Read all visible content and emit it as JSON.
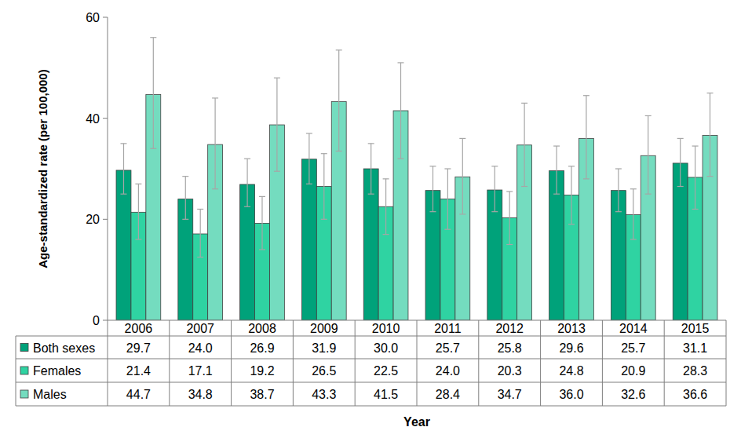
{
  "chart_data": {
    "type": "bar",
    "x_label": "Year",
    "y_label": "Age-standardized rate (per 100,000)",
    "categories": [
      "2006",
      "2007",
      "2008",
      "2009",
      "2010",
      "2011",
      "2012",
      "2013",
      "2014",
      "2015"
    ],
    "ylim": [
      0,
      60
    ],
    "yticks": [
      0,
      20,
      40,
      60
    ],
    "grid": false,
    "series": [
      {
        "name": "Both sexes",
        "color": "#00a27a",
        "values": [
          29.7,
          24.0,
          26.9,
          31.9,
          30.0,
          25.7,
          25.8,
          29.6,
          25.7,
          31.1
        ],
        "value_labels": [
          "29.7",
          "24.0",
          "26.9",
          "31.9",
          "30.0",
          "25.7",
          "25.8",
          "29.6",
          "25.7",
          "31.1"
        ],
        "ci_lower": [
          25.0,
          20.0,
          22.5,
          27.0,
          25.0,
          21.5,
          21.5,
          25.0,
          21.5,
          26.5
        ],
        "ci_upper": [
          35.0,
          28.5,
          32.0,
          37.0,
          35.0,
          30.5,
          30.5,
          34.5,
          30.0,
          36.0
        ]
      },
      {
        "name": "Females",
        "color": "#2fd3a2",
        "values": [
          21.4,
          17.1,
          19.2,
          26.5,
          22.5,
          24.0,
          20.3,
          24.8,
          20.9,
          28.3
        ],
        "value_labels": [
          "21.4",
          "17.1",
          "19.2",
          "26.5",
          "22.5",
          "24.0",
          "20.3",
          "24.8",
          "20.9",
          "28.3"
        ],
        "ci_lower": [
          16.0,
          12.5,
          14.0,
          20.0,
          17.0,
          18.0,
          15.0,
          19.0,
          16.0,
          22.0
        ],
        "ci_upper": [
          27.0,
          22.0,
          24.5,
          33.0,
          28.0,
          30.0,
          25.5,
          30.5,
          26.0,
          34.5
        ]
      },
      {
        "name": "Males",
        "color": "#74dcbf",
        "values": [
          44.7,
          34.8,
          38.7,
          43.3,
          41.5,
          28.4,
          34.7,
          36.0,
          32.6,
          36.6
        ],
        "value_labels": [
          "44.7",
          "34.8",
          "38.7",
          "43.3",
          "41.5",
          "28.4",
          "34.7",
          "36.0",
          "32.6",
          "36.6"
        ],
        "ci_lower": [
          34.0,
          26.0,
          29.5,
          33.5,
          32.0,
          21.0,
          26.5,
          28.0,
          25.0,
          28.5
        ],
        "ci_upper": [
          56.0,
          44.0,
          48.0,
          53.5,
          51.0,
          36.0,
          43.0,
          44.5,
          40.5,
          45.0
        ]
      }
    ]
  }
}
